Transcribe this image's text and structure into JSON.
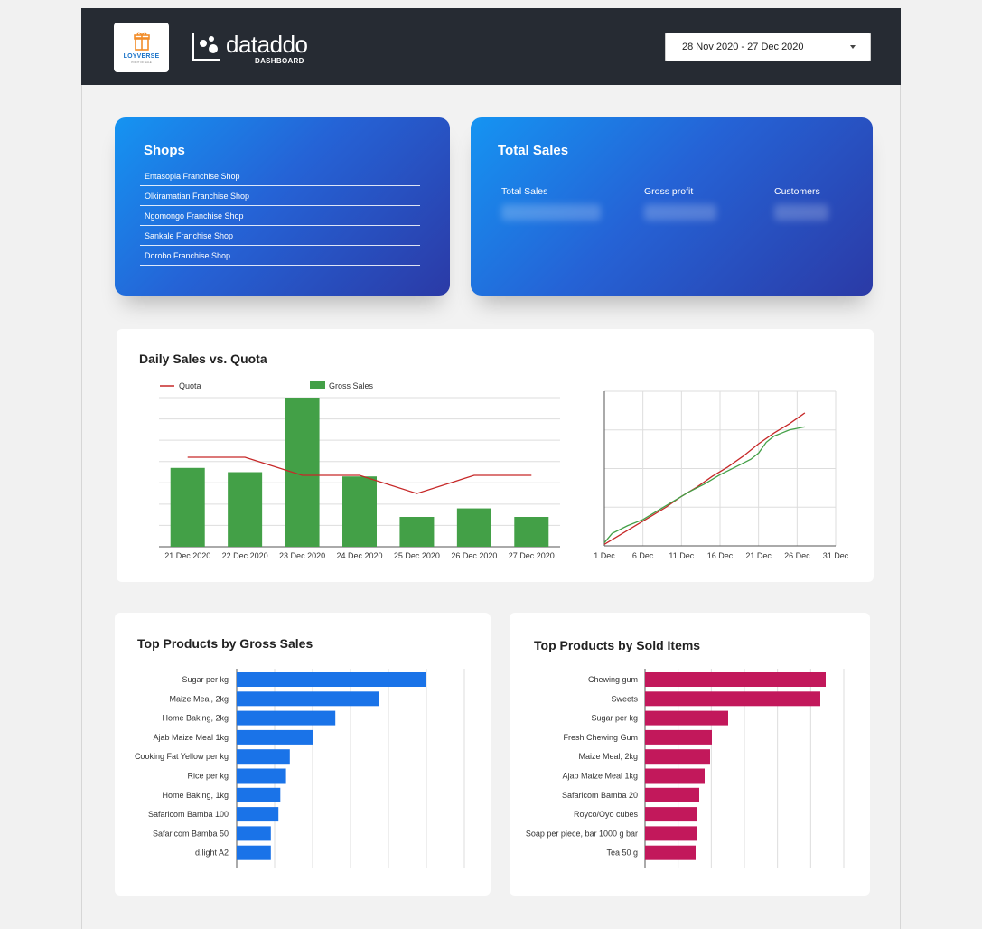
{
  "header": {
    "loyverse_label": "LOYVERSE",
    "loyverse_sub": "POINT OF SALE",
    "dataddo_word": "dataddo",
    "dataddo_sub": "DASHBOARD",
    "date_range": "28 Nov 2020 - 27 Dec 2020"
  },
  "shops": {
    "title": "Shops",
    "items": [
      "Entasopia Franchise Shop",
      "Olkiramatian Franchise Shop",
      "Ngomongo Franchise Shop",
      "Sankale Franchise Shop",
      "Dorobo Franchise Shop"
    ]
  },
  "total_sales": {
    "title": "Total Sales",
    "kpis": [
      {
        "label": "Total Sales"
      },
      {
        "label": "Gross profit"
      },
      {
        "label": "Customers"
      }
    ]
  },
  "daily": {
    "title": "Daily Sales vs. Quota"
  },
  "top_gross": {
    "title": "Top Products by Gross Sales"
  },
  "top_sold": {
    "title": "Top Products by Sold Items"
  },
  "colors": {
    "green": "#43a047",
    "red": "#c62828",
    "blue": "#1a73e8",
    "magenta": "#c2185b"
  },
  "chart_data": [
    {
      "type": "bar",
      "legend": [
        "Quota",
        "Gross Sales"
      ],
      "categories": [
        "21 Dec 2020",
        "22 Dec 2020",
        "23 Dec 2020",
        "24 Dec 2020",
        "25 Dec 2020",
        "26 Dec 2020",
        "27 Dec 2020"
      ],
      "series": [
        {
          "name": "Gross Sales",
          "values": [
            37,
            35,
            70,
            33,
            14,
            18,
            14
          ]
        },
        {
          "name": "Quota",
          "values": [
            42,
            42,
            33.5,
            33.5,
            25,
            33.5,
            33.5
          ]
        }
      ],
      "ylim": [
        0,
        70
      ],
      "grid": true
    },
    {
      "type": "line",
      "x_ticks": [
        "1 Dec",
        "6 Dec",
        "11 Dec",
        "16 Dec",
        "21 Dec",
        "26 Dec",
        "31 Dec"
      ],
      "xlim": [
        1,
        31
      ],
      "ylim": [
        0,
        100
      ],
      "series": [
        {
          "color": "red",
          "x": [
            1,
            3,
            5,
            7,
            9,
            11,
            13,
            15,
            17,
            19,
            21,
            23,
            25,
            27
          ],
          "y": [
            1,
            7,
            13,
            19,
            25,
            32,
            38,
            45,
            51,
            58,
            66,
            73,
            79,
            86
          ]
        },
        {
          "color": "green",
          "x": [
            1,
            2,
            4,
            6,
            8,
            10,
            12,
            14,
            16,
            18,
            20,
            21,
            22,
            23,
            24,
            25,
            27
          ],
          "y": [
            2,
            8,
            13,
            17,
            23,
            29,
            35,
            40,
            46,
            51,
            56,
            60,
            67,
            71,
            73,
            75,
            77
          ]
        }
      ],
      "grid": true
    },
    {
      "type": "bar",
      "orientation": "horizontal",
      "categories": [
        "Sugar per kg",
        "Maize Meal, 2kg",
        "Home Baking, 2kg",
        "Ajab Maize Meal 1kg",
        "Cooking Fat Yellow per kg",
        "Rice per kg",
        "Home Baking, 1kg",
        "Safaricom Bamba 100",
        "Safaricom Bamba 50",
        "d.light A2"
      ],
      "values": [
        100,
        75,
        52,
        40,
        28,
        26,
        23,
        22,
        18,
        18
      ],
      "xlim": [
        0,
        120
      ],
      "grid": true
    },
    {
      "type": "bar",
      "orientation": "horizontal",
      "categories": [
        "Chewing gum",
        "Sweets",
        "Sugar per kg",
        "Fresh Chewing Gum",
        "Maize Meal, 2kg",
        "Ajab Maize Meal 1kg",
        "Safaricom Bamba 20",
        "Royco/Oyo cubes",
        "Soap per piece, bar 1000 g bar",
        "Tea 50 g"
      ],
      "values": [
        100,
        97,
        46,
        37,
        36,
        33,
        30,
        29,
        29,
        28
      ],
      "xlim": [
        0,
        110
      ],
      "grid": true
    }
  ]
}
